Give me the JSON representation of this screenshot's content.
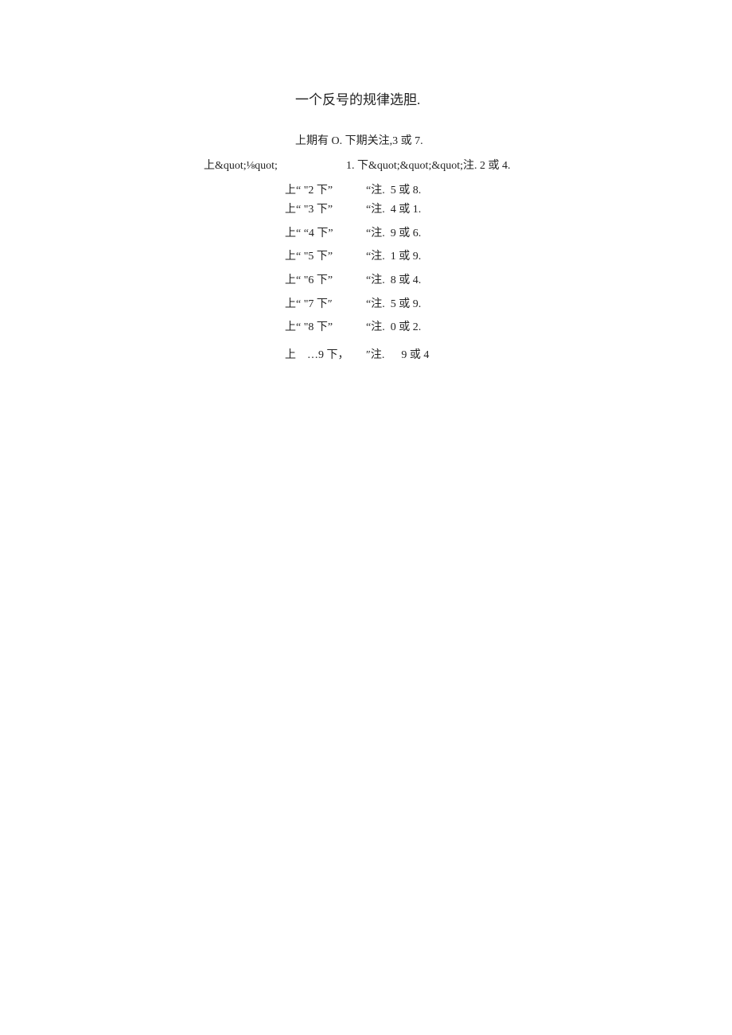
{
  "title": "一个反号的规律选胆.",
  "intro": "上期有 O. 下期关注,3 或 7.",
  "row1": {
    "left": "上&quot;⅛quot;",
    "right": "1. 下&quot;&quot;&quot;注. 2 或 4."
  },
  "rows": [
    {
      "left": "上“ \"2 下”",
      "right": "“注.  5 或 8."
    },
    {
      "left": "上“ \"3 下”",
      "right": "“注.  4 或 1."
    },
    {
      "left": "上“ “4 下”",
      "right": "“注.  9 或 6."
    },
    {
      "left": "上“ \"5 下”",
      "right": "“注.  1 或 9."
    },
    {
      "left": "上“ \"6 下”",
      "right": "“注.  8 或 4."
    },
    {
      "left": "上“ \"7 下″",
      "right": "“注.  5 或 9."
    },
    {
      "left": "上“ \"8 下”",
      "right": "“注.  0 或 2."
    },
    {
      "left": "上    …9 下，",
      "right": "″注.      9 或 4"
    }
  ]
}
